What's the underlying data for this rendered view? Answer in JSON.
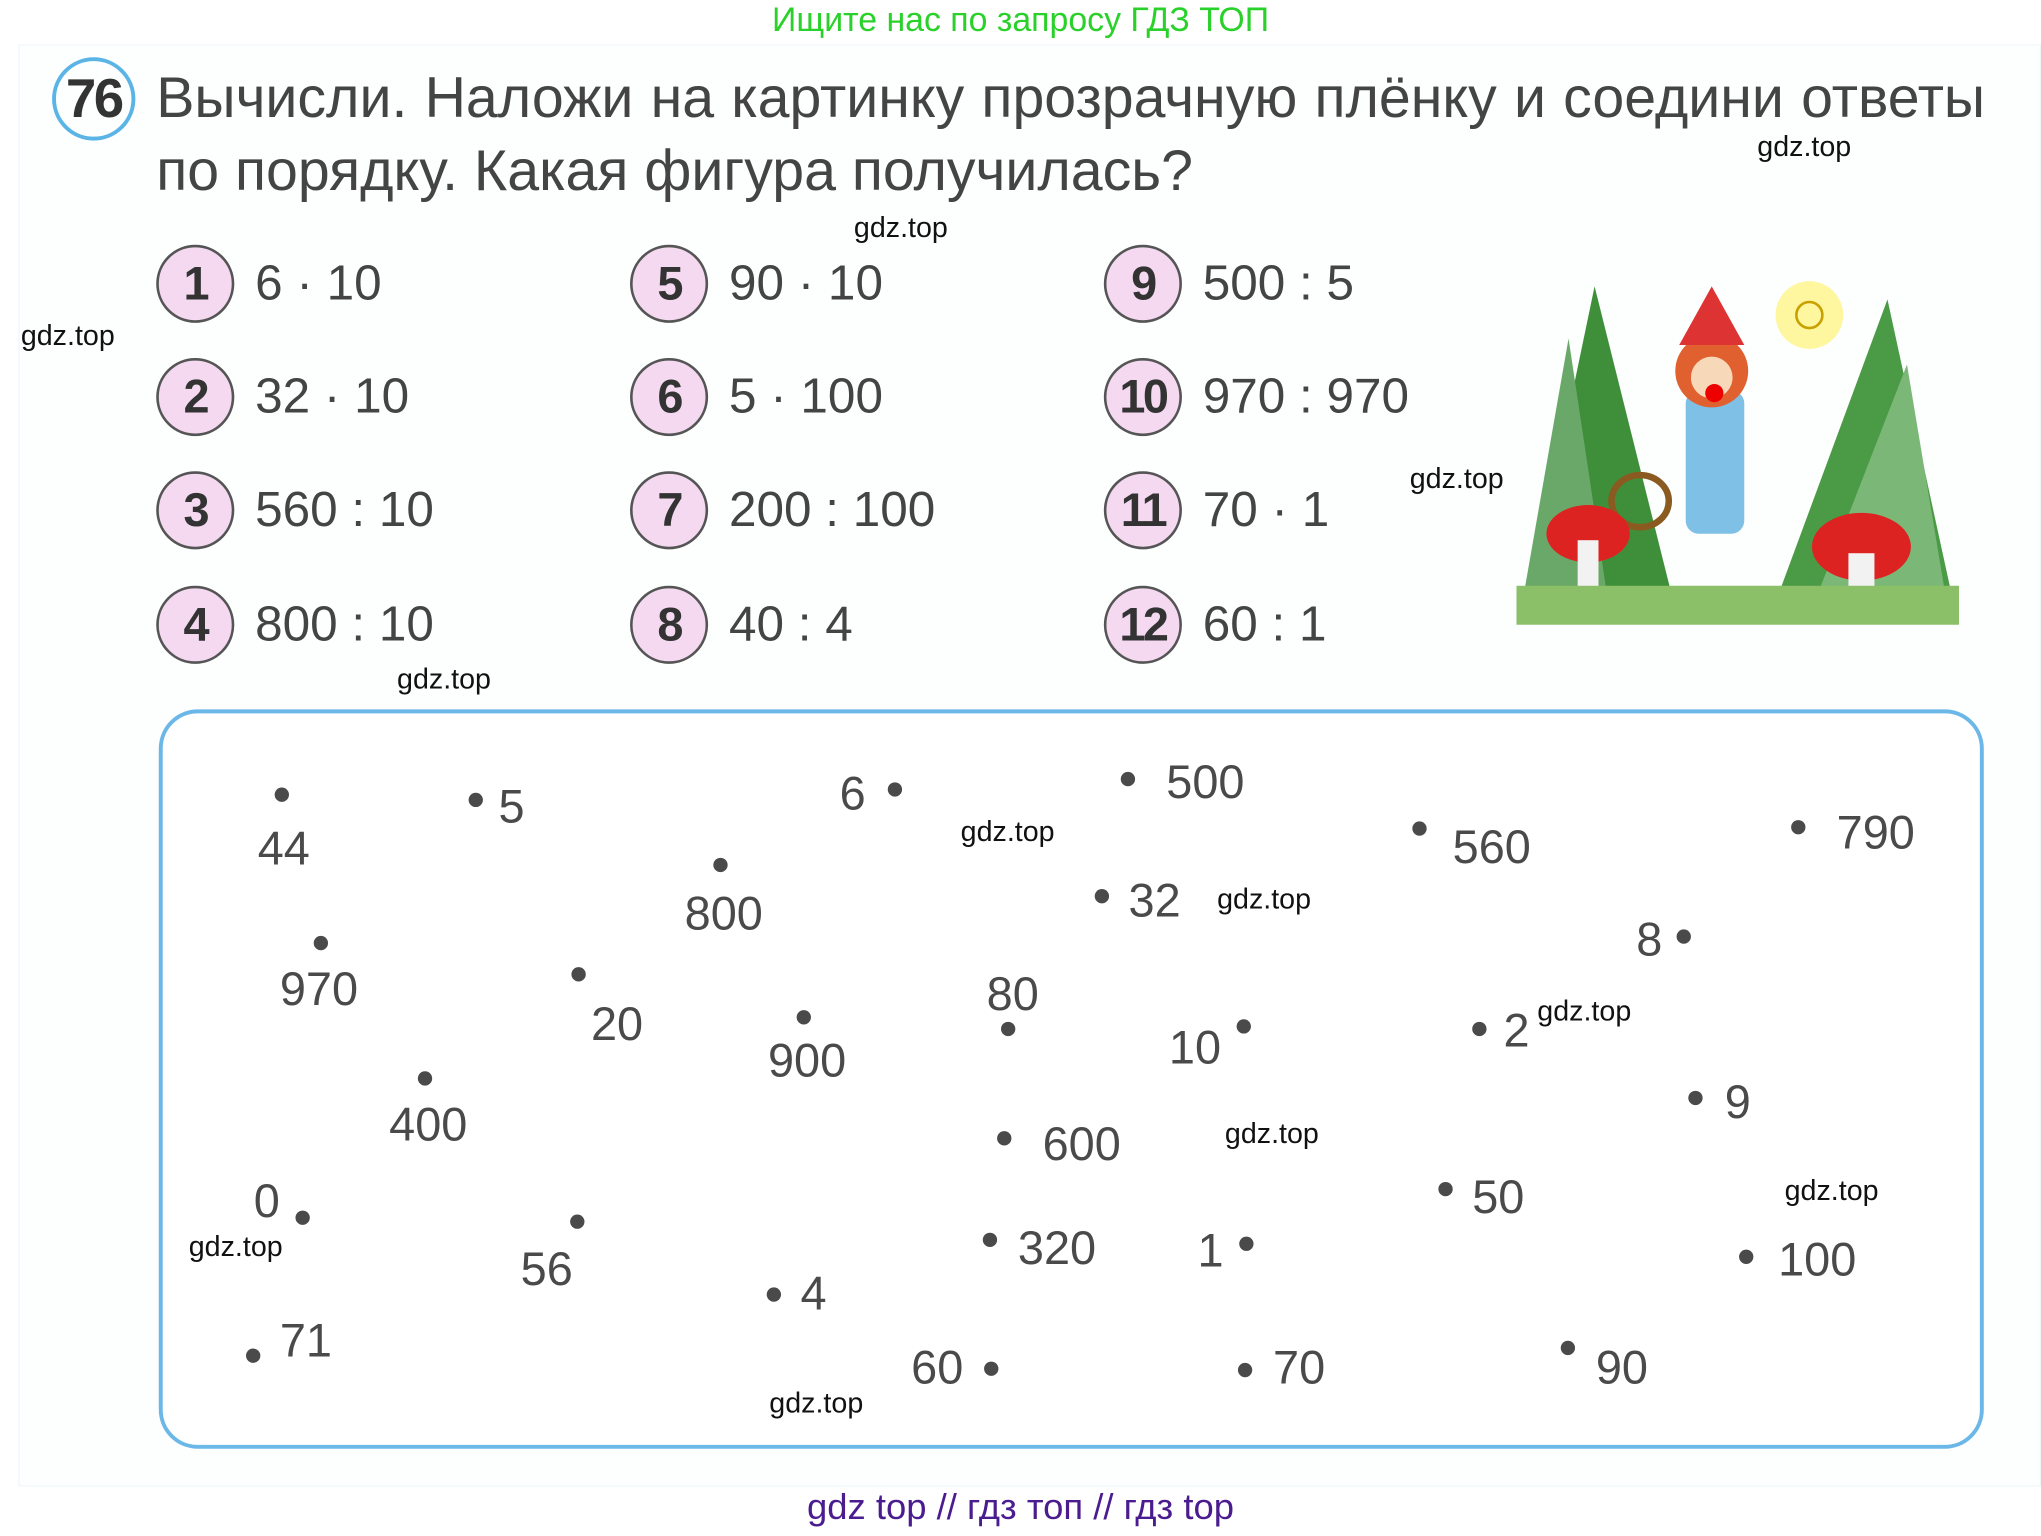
{
  "header_banner": "Ищите нас по запросу ГДЗ ТОП",
  "footer_banner": "gdz top  //  гдз топ  //  гдз top",
  "exercise": {
    "number": "76",
    "instruction": "Вычисли. Наложи на картинку прозрачную плёнку и соедини ответы по порядку. Какая фигура получилась?"
  },
  "tasks": [
    {
      "n": "1",
      "expr": "6 · 10"
    },
    {
      "n": "2",
      "expr": "32 · 10"
    },
    {
      "n": "3",
      "expr": "560 : 10"
    },
    {
      "n": "4",
      "expr": "800 : 10"
    },
    {
      "n": "5",
      "expr": "90 · 10"
    },
    {
      "n": "6",
      "expr": "5 · 100"
    },
    {
      "n": "7",
      "expr": "200 : 100"
    },
    {
      "n": "8",
      "expr": "40 : 4"
    },
    {
      "n": "9",
      "expr": "500 : 5"
    },
    {
      "n": "10",
      "expr": "970 : 970"
    },
    {
      "n": "11",
      "expr": "70 · 1"
    },
    {
      "n": "12",
      "expr": "60 : 1"
    }
  ],
  "dot_labels": [
    "44",
    "5",
    "6",
    "500",
    "560",
    "790",
    "800",
    "32",
    "8",
    "970",
    "20",
    "900",
    "80",
    "10",
    "2",
    "400",
    "9",
    "600",
    "0",
    "50",
    "56",
    "320",
    "1",
    "100",
    "4",
    "71",
    "60",
    "70",
    "90"
  ],
  "watermark": "gdz.top",
  "colors": {
    "badge_fill": "#f4d9f1",
    "board_border": "#6ab7e8",
    "banner_green": "#2bd12b",
    "footer_purple": "#4b1c8f"
  }
}
